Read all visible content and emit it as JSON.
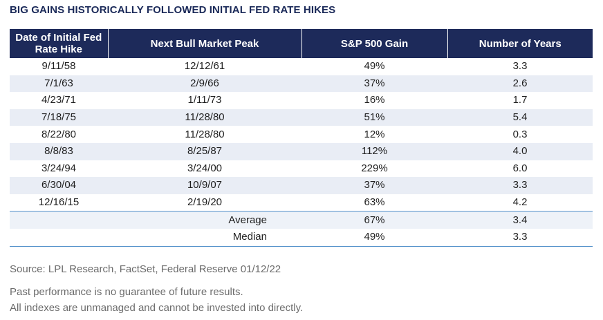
{
  "title": "BIG GAINS HISTORICALLY FOLLOWED INITIAL FED RATE HIKES",
  "chart_data": {
    "type": "table",
    "columns": [
      "Date of Initial Fed Rate Hike",
      "Next Bull Market Peak",
      "S&P 500 Gain",
      "Number of Years"
    ],
    "rows": [
      [
        "9/11/58",
        "12/12/61",
        "49%",
        "3.3"
      ],
      [
        "7/1/63",
        "2/9/66",
        "37%",
        "2.6"
      ],
      [
        "4/23/71",
        "1/11/73",
        "16%",
        "1.7"
      ],
      [
        "7/18/75",
        "11/28/80",
        "51%",
        "5.4"
      ],
      [
        "8/22/80",
        "11/28/80",
        "12%",
        "0.3"
      ],
      [
        "8/8/83",
        "8/25/87",
        "112%",
        "4.0"
      ],
      [
        "3/24/94",
        "3/24/00",
        "229%",
        "6.0"
      ],
      [
        "6/30/04",
        "10/9/07",
        "37%",
        "3.3"
      ],
      [
        "12/16/15",
        "2/19/20",
        "63%",
        "4.2"
      ]
    ],
    "summary": [
      {
        "label": "Average",
        "gain": "67%",
        "years": "3.4"
      },
      {
        "label": "Median",
        "gain": "49%",
        "years": "3.3"
      }
    ]
  },
  "footnotes": {
    "source": "Source: LPL Research, FactSet, Federal Reserve   01/12/22",
    "disclaimer_1": "Past performance is no guarantee of future results.",
    "disclaimer_2": "All indexes are unmanaged and cannot be invested into directly."
  },
  "colors": {
    "header_bg": "#1d2a5a",
    "title_text": "#1b2a59",
    "row_stripe": "#e9edf5",
    "rule": "#4f8fc9"
  }
}
